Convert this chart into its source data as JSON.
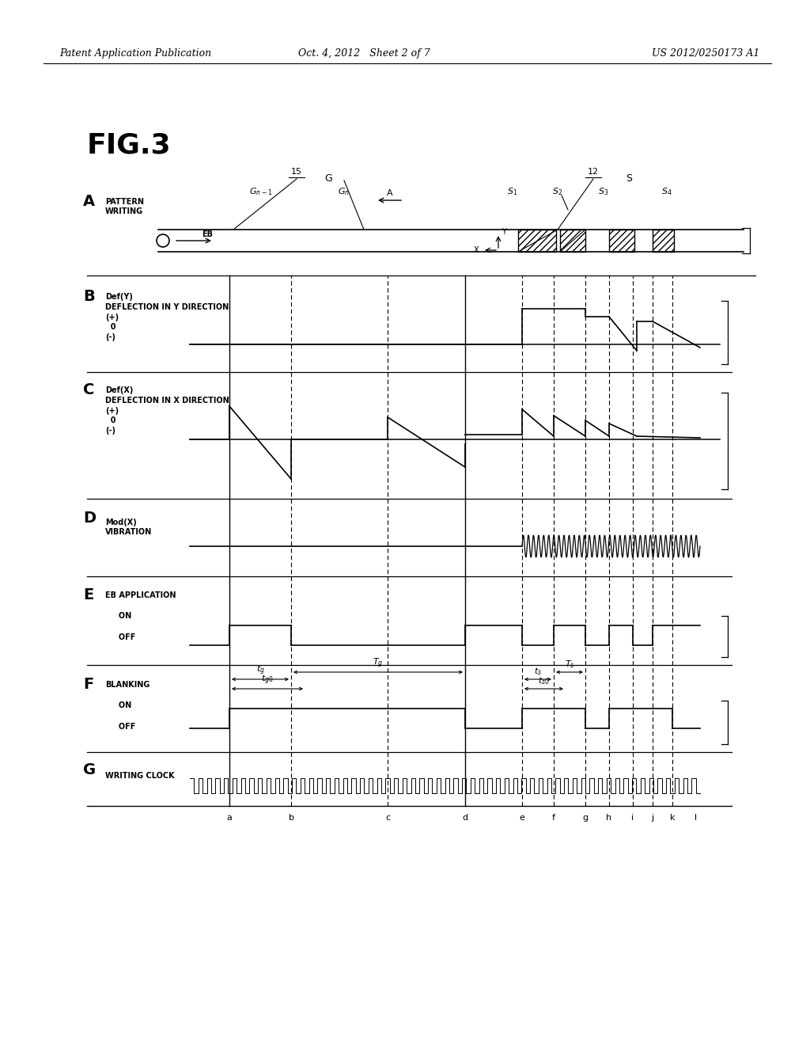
{
  "header_left": "Patent Application Publication",
  "header_mid": "Oct. 4, 2012   Sheet 2 of 7",
  "header_right": "US 2012/0250173 A1",
  "fig_label": "FIG.3",
  "bg_color": "#ffffff",
  "line_color": "#000000"
}
